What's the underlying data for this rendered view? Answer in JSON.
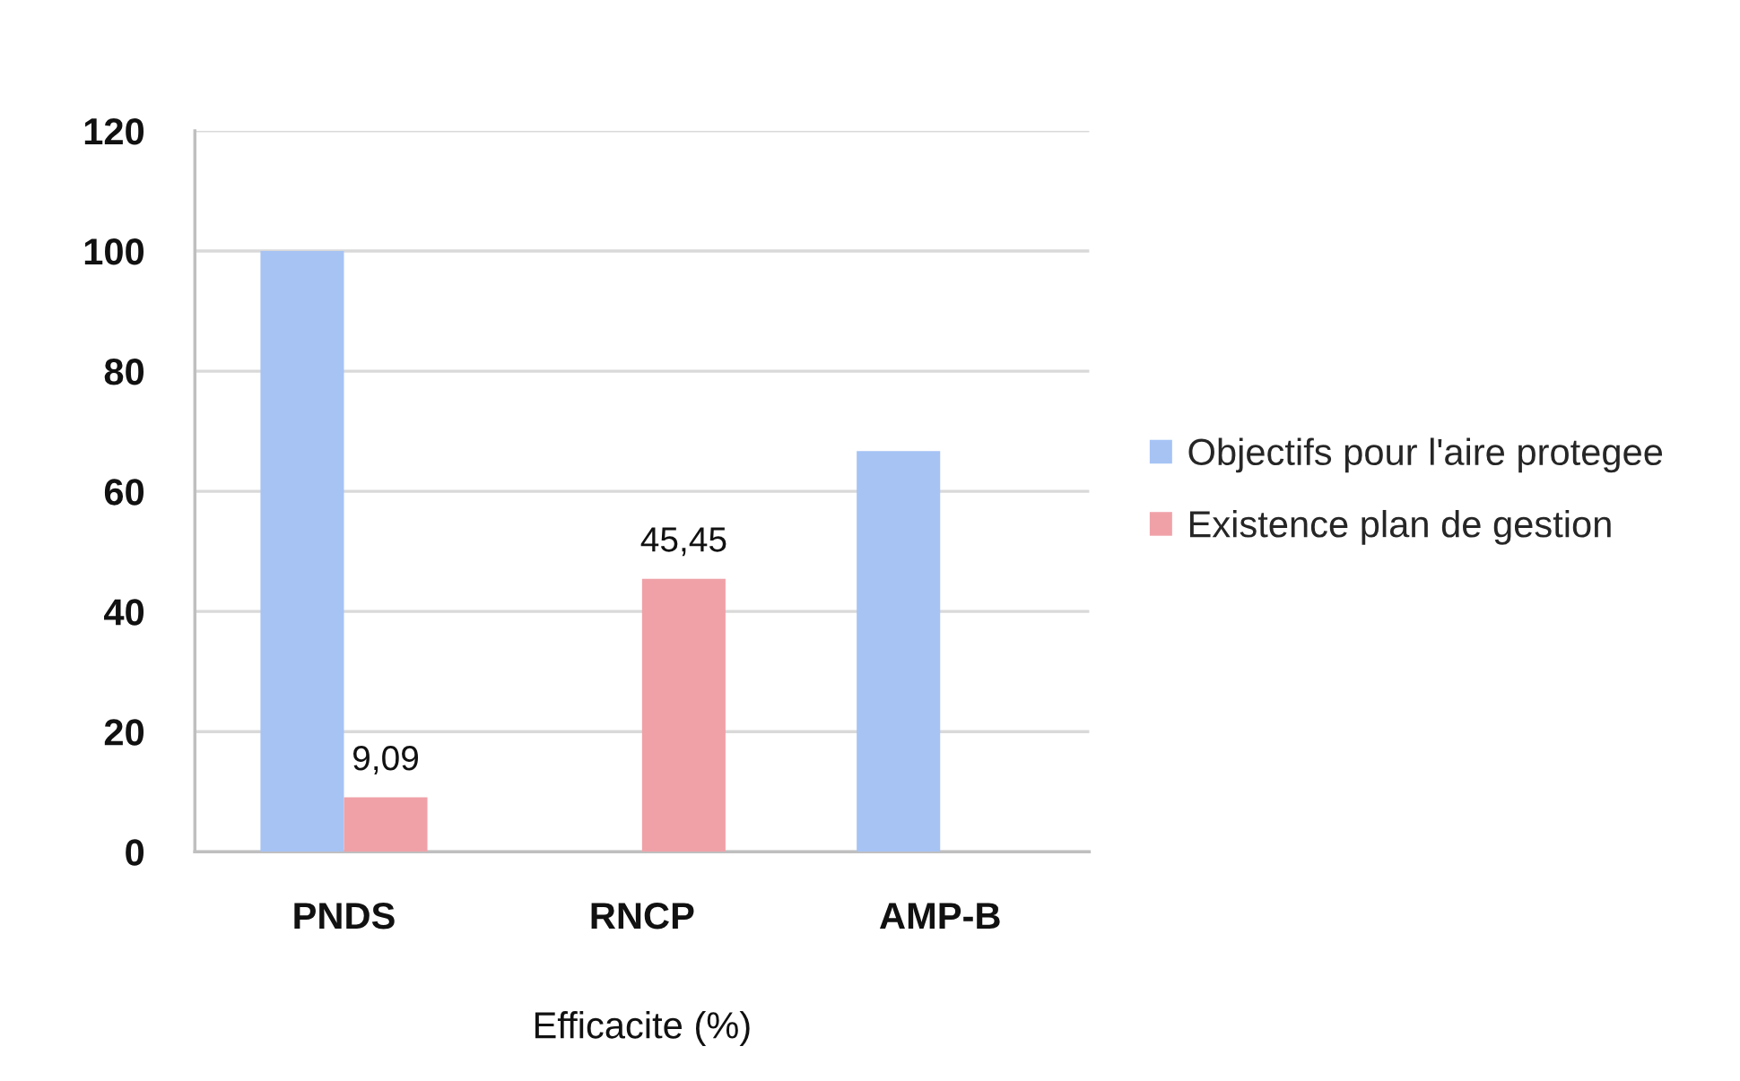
{
  "chart_data": {
    "type": "bar",
    "xlabel": "Efficacite (%)",
    "categories": [
      "PNDS",
      "RNCP",
      "AMP-B"
    ],
    "series": [
      {
        "name": "Objectifs pour l'aire protegee",
        "color": "#a6c3f4",
        "values": [
          100,
          null,
          66.7
        ]
      },
      {
        "name": "Existence plan de gestion",
        "color": "#f0a1a8",
        "values": [
          9.09,
          45.45,
          null
        ],
        "value_labels": [
          "9,09",
          "45,45",
          null
        ]
      }
    ],
    "ylim": [
      0,
      120
    ],
    "yticks": [
      0,
      20,
      40,
      60,
      80,
      100,
      120
    ],
    "grid": "y",
    "legend": "right"
  }
}
